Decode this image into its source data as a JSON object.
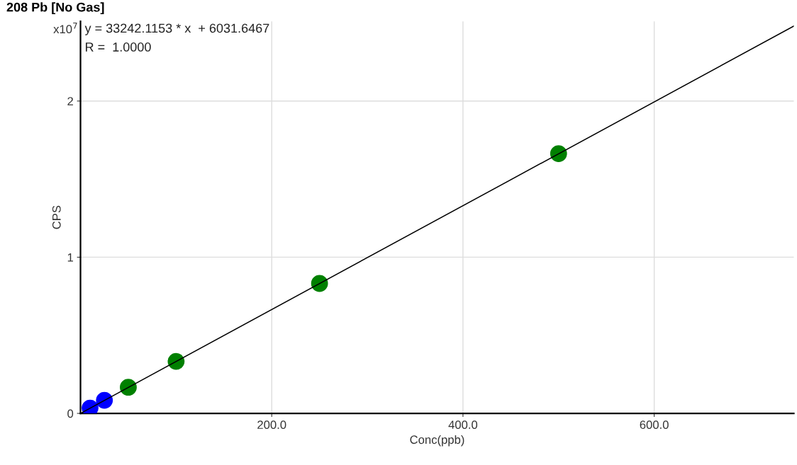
{
  "chart_data": {
    "type": "scatter",
    "title": "208 Pb [No Gas]",
    "xlabel": "Conc(ppb)",
    "ylabel": "CPS",
    "series": [
      {
        "color": "#0000ff",
        "x": [
          10,
          25
        ],
        "values": [
          0.034,
          0.084
        ],
        "marker": "circle"
      },
      {
        "color": "#008000",
        "x": [
          50,
          100,
          250,
          500
        ],
        "values": [
          0.167,
          0.333,
          0.832,
          1.663
        ],
        "marker": "circle"
      },
      {
        "type": "line",
        "color": "#000000",
        "x": [
          0,
          746
        ],
        "values": [
          0.0,
          2.48
        ],
        "marker": "none"
      }
    ],
    "annotations": [
      "x10$^{7}$",
      "y = 33242.1153 * x  + 6031.6467",
      "R =  1.0000"
    ],
    "xlim": [
      0,
      746
    ],
    "ylim": [
      0,
      2.51
    ],
    "xticks": [
      {
        "value": 200,
        "label": "200.0"
      },
      {
        "value": 400,
        "label": "400.0"
      },
      {
        "value": 600,
        "label": "600.0"
      }
    ],
    "yticks": [
      0,
      1,
      2
    ],
    "grid": true
  }
}
